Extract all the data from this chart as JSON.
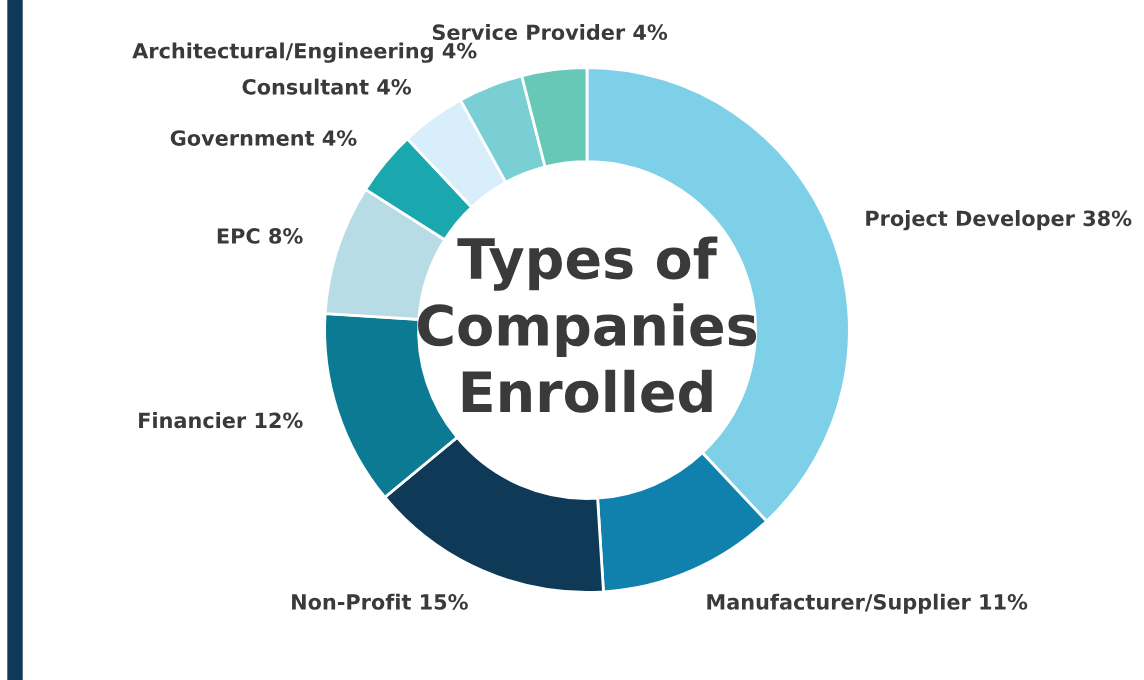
{
  "chart_data": {
    "type": "donut",
    "title": "Types of Companies Enrolled",
    "categories": [
      "Project Developer",
      "Manufacturer/Supplier",
      "Non-Profit",
      "Financier",
      "EPC",
      "Government",
      "Consultant",
      "Architectural/Engineering",
      "Service Provider"
    ],
    "values": [
      38,
      11,
      15,
      12,
      8,
      4,
      4,
      4,
      4
    ],
    "value_labels": [
      "38%",
      "11%",
      "15%",
      "12%",
      "8%",
      "4%",
      "4%",
      "4%",
      "4%"
    ],
    "colors": [
      "#7ecfe8",
      "#1081ad",
      "#0f3a57",
      "#0d7a93",
      "#b8dce6",
      "#1aa8ae",
      "#d8eefa",
      "#7acfd4",
      "#68c8b8"
    ],
    "legend": false
  }
}
